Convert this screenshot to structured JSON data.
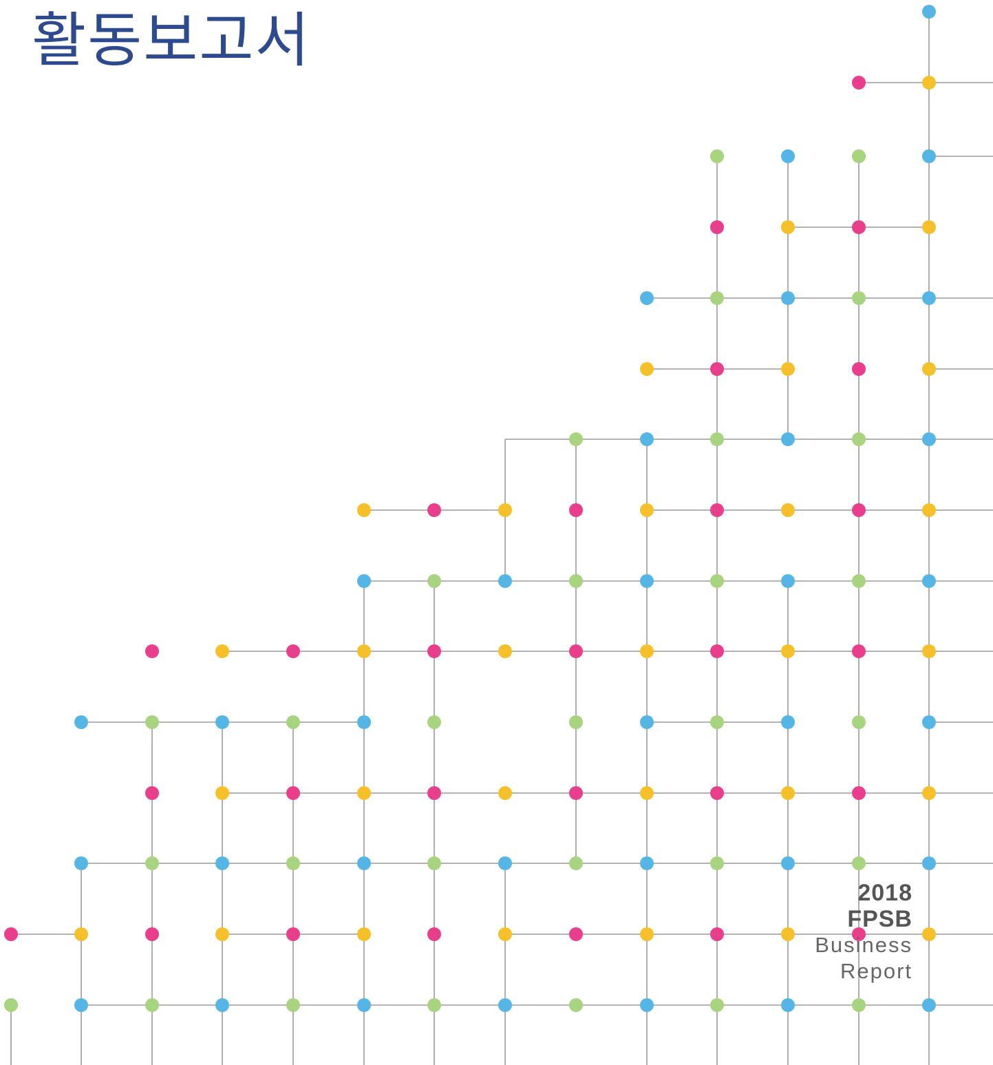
{
  "title": "활동보고서",
  "caption": {
    "year": "2018",
    "organization": "FPSB",
    "line1": "Business",
    "line2": "Report"
  },
  "colors": {
    "title": "#2e4a8e",
    "caption": "#555555",
    "line": "#9a9a9a",
    "dot_blue": "#55b6e6",
    "dot_pink": "#e93e8b",
    "dot_yellow": "#f6c02a",
    "dot_green": "#a8d37f"
  }
}
